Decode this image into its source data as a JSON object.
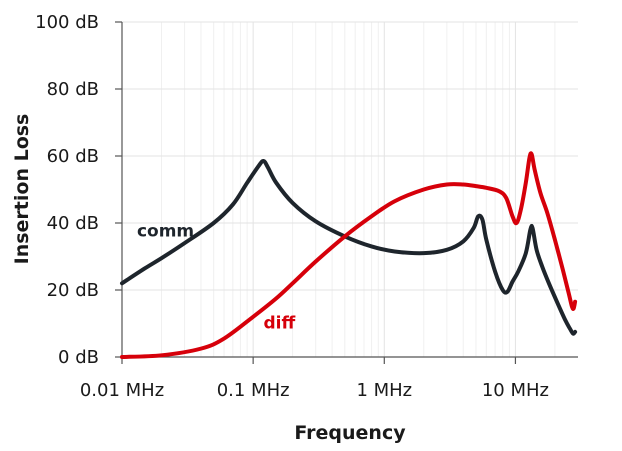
{
  "chart_data": {
    "type": "line",
    "title": "",
    "xlabel": "Frequency",
    "ylabel": "Insertion Loss",
    "x_scale": "log",
    "xlim": [
      0.01,
      30
    ],
    "ylim": [
      0,
      100
    ],
    "x_ticks": [
      {
        "value": 0.01,
        "label": "0.01 MHz"
      },
      {
        "value": 0.1,
        "label": "0.1 MHz"
      },
      {
        "value": 1,
        "label": "1 MHz"
      },
      {
        "value": 10,
        "label": "10 MHz"
      }
    ],
    "y_ticks": [
      {
        "value": 0,
        "label": "0 dB"
      },
      {
        "value": 20,
        "label": "20 dB"
      },
      {
        "value": 40,
        "label": "40 dB"
      },
      {
        "value": 60,
        "label": "60 dB"
      },
      {
        "value": 80,
        "label": "80 dB"
      },
      {
        "value": 100,
        "label": "100 dB"
      }
    ],
    "grid": true,
    "series": [
      {
        "name": "comm",
        "color": "#1e252c",
        "label_at": {
          "x": 0.013,
          "y": 36
        },
        "points": [
          [
            0.01,
            22
          ],
          [
            0.015,
            26.5
          ],
          [
            0.02,
            29.5
          ],
          [
            0.03,
            34
          ],
          [
            0.05,
            40
          ],
          [
            0.07,
            45.5
          ],
          [
            0.09,
            52
          ],
          [
            0.11,
            57
          ],
          [
            0.12,
            58.5
          ],
          [
            0.13,
            56.5
          ],
          [
            0.15,
            52
          ],
          [
            0.2,
            46
          ],
          [
            0.3,
            40.5
          ],
          [
            0.5,
            36
          ],
          [
            0.8,
            33
          ],
          [
            1.2,
            31.5
          ],
          [
            2,
            31
          ],
          [
            3,
            32
          ],
          [
            4,
            34.5
          ],
          [
            4.8,
            38.5
          ],
          [
            5.2,
            42
          ],
          [
            5.6,
            41
          ],
          [
            6,
            35
          ],
          [
            7,
            25.5
          ],
          [
            8,
            20
          ],
          [
            8.7,
            19.5
          ],
          [
            9.5,
            22.5
          ],
          [
            10.5,
            25.5
          ],
          [
            12,
            31
          ],
          [
            13,
            38
          ],
          [
            13.5,
            38.5
          ],
          [
            14.5,
            32
          ],
          [
            16,
            27
          ],
          [
            18,
            22
          ],
          [
            21,
            16
          ],
          [
            24,
            11
          ],
          [
            26,
            8.5
          ],
          [
            27.5,
            7
          ],
          [
            28.5,
            7.5
          ]
        ]
      },
      {
        "name": "diff",
        "color": "#d6000a",
        "label_at": {
          "x": 0.12,
          "y": 8.5
        },
        "points": [
          [
            0.01,
            0
          ],
          [
            0.02,
            0.5
          ],
          [
            0.04,
            2.5
          ],
          [
            0.06,
            5.5
          ],
          [
            0.1,
            12
          ],
          [
            0.15,
            17.5
          ],
          [
            0.2,
            22
          ],
          [
            0.3,
            28.5
          ],
          [
            0.5,
            36
          ],
          [
            0.8,
            42
          ],
          [
            1.2,
            46.5
          ],
          [
            2,
            50
          ],
          [
            3,
            51.5
          ],
          [
            4,
            51.5
          ],
          [
            5,
            51
          ],
          [
            6,
            50.5
          ],
          [
            7.5,
            49.5
          ],
          [
            8.5,
            47.5
          ],
          [
            9.5,
            42
          ],
          [
            10.2,
            40
          ],
          [
            11,
            44
          ],
          [
            12,
            52
          ],
          [
            12.8,
            59.5
          ],
          [
            13.3,
            60.5
          ],
          [
            14,
            56
          ],
          [
            15.5,
            49
          ],
          [
            17.5,
            43
          ],
          [
            20,
            35
          ],
          [
            23,
            26
          ],
          [
            25.5,
            19
          ],
          [
            27,
            15
          ],
          [
            27.8,
            14.5
          ],
          [
            28.5,
            16.5
          ]
        ]
      }
    ]
  }
}
